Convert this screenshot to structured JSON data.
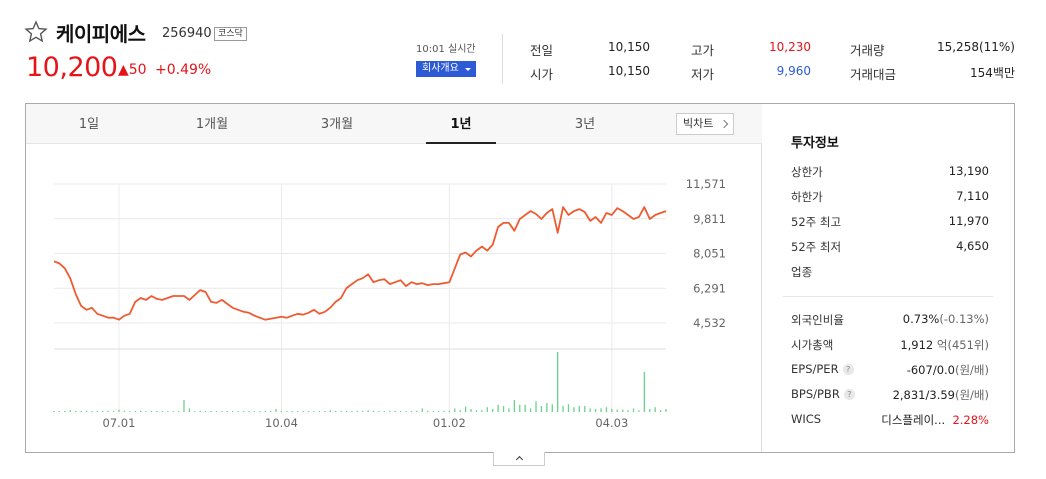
{
  "header": {
    "stock_name": "케이피에스",
    "stock_code": "256940",
    "market": "코스닥",
    "price": "10,200",
    "change": "▲50",
    "change_pct": "+0.49%",
    "realtime": "10:01 실시간",
    "company_button": "회사개요"
  },
  "quote": {
    "prev_close_label": "전일",
    "prev_close": "10,150",
    "open_label": "시가",
    "open": "10,150",
    "high_label": "고가",
    "high": "10,230",
    "low_label": "저가",
    "low": "9,960",
    "volume_label": "거래량",
    "volume": "15,258(11%)",
    "amount_label": "거래대금",
    "amount": "154백만"
  },
  "tabs": [
    {
      "label": "1일"
    },
    {
      "label": "1개월"
    },
    {
      "label": "3개월"
    },
    {
      "label": "1년"
    },
    {
      "label": "3년"
    }
  ],
  "daychart_button": "빅차트",
  "chart_data": {
    "type": "line",
    "title": "",
    "y_ticks": [
      "11,571",
      "9,811",
      "8,051",
      "6,291",
      "4,532"
    ],
    "y_tick_values": [
      11571,
      9811,
      8051,
      6291,
      4532
    ],
    "x_ticks": [
      "07.01",
      "10.04",
      "01.02",
      "04.03"
    ],
    "x_tick_index": [
      12,
      42,
      73,
      103
    ],
    "ylim": [
      4532,
      11571
    ],
    "series": [
      {
        "values": [
          7650,
          7550,
          7300,
          6800,
          6000,
          5400,
          5200,
          5300,
          5000,
          4900,
          4800,
          4800,
          4700,
          4900,
          5000,
          5600,
          5800,
          5700,
          5900,
          5750,
          5700,
          5800,
          5900,
          5900,
          5900,
          5700,
          5950,
          6200,
          6100,
          5600,
          5550,
          5700,
          5500,
          5300,
          5200,
          5100,
          5050,
          4900,
          4800,
          4700,
          4750,
          4800,
          4850,
          4800,
          4900,
          5000,
          4950,
          5050,
          5200,
          5000,
          5100,
          5300,
          5600,
          5800,
          6300,
          6500,
          6700,
          6800,
          7000,
          6600,
          6700,
          6750,
          6500,
          6600,
          6700,
          6400,
          6600,
          6500,
          6550,
          6450,
          6500,
          6500,
          6550,
          6600,
          7300,
          8000,
          8100,
          7900,
          8200,
          8400,
          8200,
          8500,
          9400,
          9600,
          9600,
          9200,
          9800,
          10000,
          10200,
          10050,
          9800,
          10100,
          10300,
          9100,
          10400,
          10000,
          10200,
          10300,
          10150,
          9700,
          9900,
          9600,
          10100,
          10000,
          10350,
          10200,
          10000,
          9800,
          9900,
          10400,
          9800,
          10000,
          10100,
          10200
        ]
      }
    ],
    "volume": [
      0,
      0,
      0.02,
      0.03,
      0.01,
      0.01,
      0.02,
      0.01,
      0.02,
      0.01,
      0.02,
      0.01,
      0.04,
      0.02,
      0.01,
      0.01,
      0.02,
      0.01,
      0.02,
      0.01,
      0.01,
      0.01,
      0.01,
      0.01,
      0.2,
      0.06,
      0.01,
      0.02,
      0.01,
      0.01,
      0.01,
      0.01,
      0.01,
      0.01,
      0.01,
      0.01,
      0.01,
      0.01,
      0.01,
      0.01,
      0.02,
      0.05,
      0.01,
      0.01,
      0.01,
      0.01,
      0.01,
      0.01,
      0.01,
      0.01,
      0.01,
      0.03,
      0.02,
      0.02,
      0.02,
      0.01,
      0.02,
      0.02,
      0.03,
      0.02,
      0.01,
      0.01,
      0.02,
      0.02,
      0.01,
      0.01,
      0.01,
      0.02,
      0.06,
      0.02,
      0.01,
      0.01,
      0.02,
      0.02,
      0.06,
      0.03,
      0.09,
      0.05,
      0.03,
      0.03,
      0.08,
      0.05,
      0.12,
      0.1,
      0.06,
      0.2,
      0.12,
      0.12,
      0.06,
      0.18,
      0.1,
      0.15,
      0.13,
      1.0,
      0.1,
      0.13,
      0.08,
      0.1,
      0.1,
      0.06,
      0.05,
      0.06,
      0.08,
      0.05,
      0.04,
      0.04,
      0.03,
      0.06,
      0.03,
      0.67,
      0.05,
      0.08,
      0.03,
      0.05
    ]
  },
  "side": {
    "title": "투자정보",
    "rows": [
      {
        "label": "상한가",
        "value": "13,190"
      },
      {
        "label": "하한가",
        "value": "7,110"
      },
      {
        "label": "52주 최고",
        "value": "11,970"
      },
      {
        "label": "52주 최저",
        "value": "4,650"
      },
      {
        "label": "업종",
        "value": ""
      },
      {
        "label": "외국인비율",
        "value": "0.73%",
        "value_extra": "(-0.13%)"
      },
      {
        "label": "시가총액",
        "value": "1,912",
        "value_extra": "억(451위)"
      },
      {
        "label": "EPS/PER",
        "value": "-607/0.0",
        "value_extra": "(원/배)"
      },
      {
        "label": "BPS/PBR",
        "value": "2,831/3.59",
        "value_extra": "(원/배)"
      },
      {
        "label": "WICS",
        "value": "디스플레이...",
        "value_extra": "2.28%"
      }
    ]
  },
  "colors": {
    "up": "#e5141a",
    "down": "#2d5bd6",
    "line": "#ef5b30",
    "volume": "#6ad28f"
  }
}
